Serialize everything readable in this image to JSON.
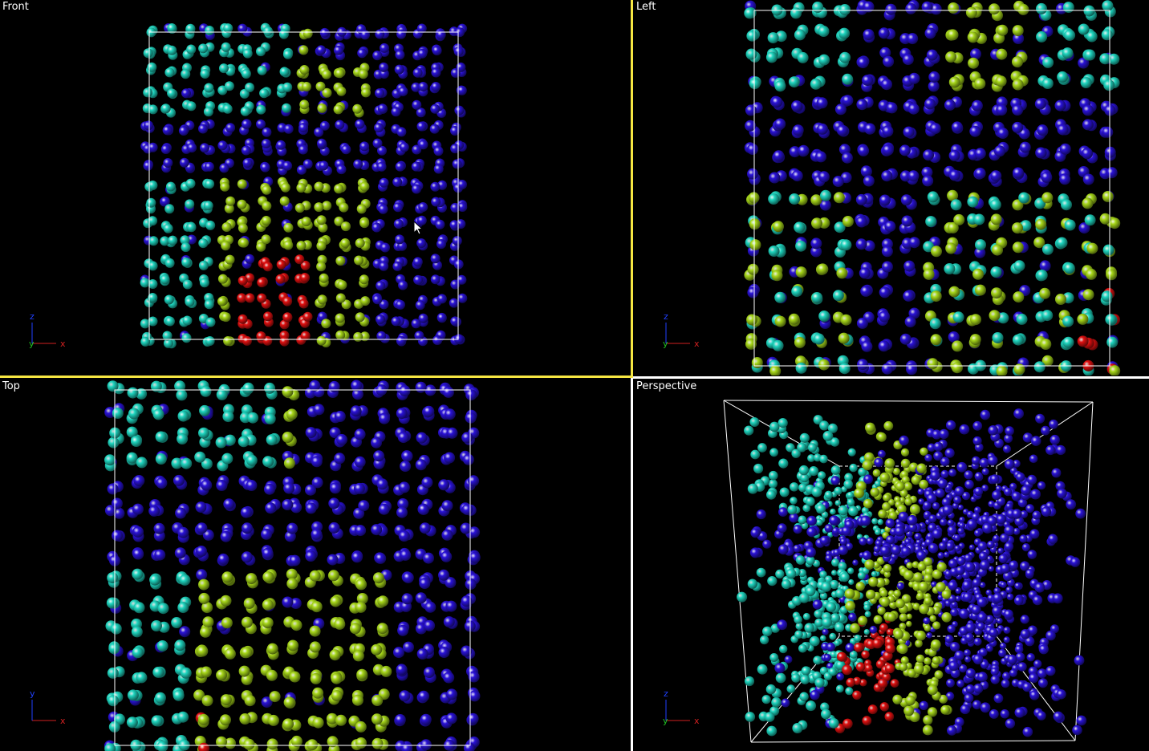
{
  "viewports": {
    "front": {
      "label": "Front",
      "axis_h": "x",
      "axis_v": "z",
      "axis_depth": "y"
    },
    "left": {
      "label": "Left",
      "axis_h": "x",
      "axis_v": "z",
      "axis_depth": "y"
    },
    "top": {
      "label": "Top",
      "axis_h": "x",
      "axis_v": "y"
    },
    "perspective": {
      "label": "Perspective",
      "axis_h": "x",
      "axis_v": "z",
      "axis_depth": "y"
    }
  },
  "active_viewport": "front",
  "colors": {
    "background": "#000000",
    "active_border": "#f5e642",
    "inactive_border": "#ffffff",
    "cell_box": "#ffffff",
    "cyan": "#1fd6c0",
    "lime": "#a8d81a",
    "blue": "#2a12d8",
    "red": "#e01010",
    "axis_x": "#d02020",
    "axis_y": "#20c020",
    "axis_z": "#2040ff"
  },
  "atom_types": [
    "cyan",
    "lime",
    "blue",
    "red"
  ]
}
